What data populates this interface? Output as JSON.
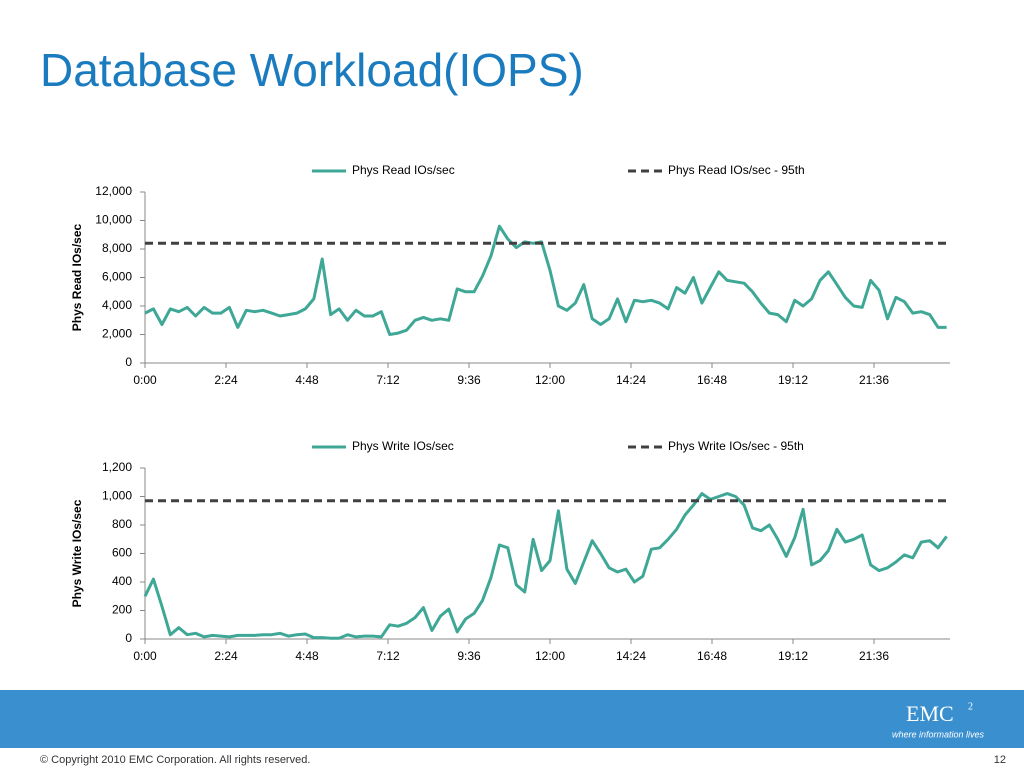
{
  "slide": {
    "title": "Database Workload(IOPS)",
    "copyright": "© Copyright 2010  EMC Corporation.  All rights reserved.",
    "page": "12",
    "logo": "EMC",
    "logo_sup": "2",
    "tagline": "where information lives"
  },
  "chart_data": [
    {
      "type": "line",
      "ylabel": "Phys Read IOs/sec",
      "x": [
        0,
        15,
        30,
        45,
        60,
        75,
        90,
        105,
        120,
        135,
        150,
        165,
        180,
        195,
        210,
        225,
        240,
        255,
        270,
        285,
        300,
        315,
        330,
        345,
        360,
        375,
        390,
        405,
        420,
        435,
        450,
        465,
        480,
        495,
        510,
        525,
        540,
        555,
        570,
        585,
        600,
        615,
        630,
        645,
        660,
        675,
        690,
        705,
        720,
        735,
        750,
        765,
        780,
        795,
        810,
        825,
        840,
        855,
        870,
        885,
        900,
        915,
        930,
        945,
        960,
        975,
        990,
        1005,
        1020,
        1035,
        1050,
        1065,
        1080,
        1095,
        1110,
        1125,
        1140,
        1155,
        1170,
        1185,
        1200,
        1215,
        1230,
        1245,
        1260,
        1275,
        1290,
        1305,
        1320,
        1335,
        1350,
        1365,
        1380,
        1395,
        1410,
        1425
      ],
      "series": [
        {
          "name": "Phys Read IOs/sec",
          "color": "#3fa796",
          "values": [
            3500,
            3800,
            2700,
            3800,
            3600,
            3900,
            3300,
            3900,
            3500,
            3500,
            3900,
            2500,
            3700,
            3600,
            3700,
            3500,
            3300,
            3400,
            3500,
            3800,
            4500,
            7300,
            3400,
            3800,
            3000,
            3700,
            3300,
            3300,
            3600,
            2000,
            2100,
            2300,
            3000,
            3200,
            3000,
            3100,
            3000,
            5200,
            5000,
            5000,
            6100,
            7500,
            9600,
            8700,
            8100,
            8500,
            8400,
            8500,
            6500,
            4000,
            3700,
            4200,
            5500,
            3100,
            2700,
            3100,
            4500,
            2900,
            4400,
            4300,
            4400,
            4200,
            3800,
            5300,
            4900,
            6000,
            4200,
            5300,
            6400,
            5800,
            5700,
            5600,
            5000,
            4200,
            3500,
            3400,
            2900,
            4400,
            4000,
            4500,
            5800,
            6400,
            5500,
            4600,
            4000,
            3900,
            5800,
            5100,
            3100,
            4600,
            4300,
            3500,
            3600,
            3400,
            2500,
            2500
          ]
        }
      ],
      "reference_lines": [
        {
          "name": "Phys Read IOs/sec - 95th",
          "value": 8400,
          "color": "#404040",
          "dash": true
        }
      ],
      "xlim": [
        0,
        1440
      ],
      "xticks": [
        {
          "value": 0,
          "label": "0:00"
        },
        {
          "value": 144,
          "label": "2:24"
        },
        {
          "value": 288,
          "label": "4:48"
        },
        {
          "value": 432,
          "label": "7:12"
        },
        {
          "value": 576,
          "label": "9:36"
        },
        {
          "value": 720,
          "label": "12:00"
        },
        {
          "value": 864,
          "label": "14:24"
        },
        {
          "value": 1008,
          "label": "16:48"
        },
        {
          "value": 1152,
          "label": "19:12"
        },
        {
          "value": 1296,
          "label": "21:36"
        }
      ],
      "ylim": [
        0,
        12000
      ],
      "yticks": [
        0,
        {
          "value": 2000,
          "label": "2,000"
        },
        {
          "value": 4000,
          "label": "4,000"
        },
        {
          "value": 6000,
          "label": "6,000"
        },
        {
          "value": 8000,
          "label": "8,000"
        },
        {
          "value": 10000,
          "label": "10,000"
        },
        {
          "value": 12000,
          "label": "12,000"
        }
      ],
      "grid": false
    },
    {
      "type": "line",
      "ylabel": "Phys Write IOs/sec",
      "x": [
        0,
        15,
        30,
        45,
        60,
        75,
        90,
        105,
        120,
        135,
        150,
        165,
        180,
        195,
        210,
        225,
        240,
        255,
        270,
        285,
        300,
        315,
        330,
        345,
        360,
        375,
        390,
        405,
        420,
        435,
        450,
        465,
        480,
        495,
        510,
        525,
        540,
        555,
        570,
        585,
        600,
        615,
        630,
        645,
        660,
        675,
        690,
        705,
        720,
        735,
        750,
        765,
        780,
        795,
        810,
        825,
        840,
        855,
        870,
        885,
        900,
        915,
        930,
        945,
        960,
        975,
        990,
        1005,
        1020,
        1035,
        1050,
        1065,
        1080,
        1095,
        1110,
        1125,
        1140,
        1155,
        1170,
        1185,
        1200,
        1215,
        1230,
        1245,
        1260,
        1275,
        1290,
        1305,
        1320,
        1335,
        1350,
        1365,
        1380,
        1395,
        1410,
        1425
      ],
      "series": [
        {
          "name": "Phys Write IOs/sec",
          "color": "#3fa796",
          "values": [
            300,
            420,
            230,
            30,
            80,
            30,
            40,
            15,
            25,
            20,
            15,
            25,
            25,
            25,
            30,
            30,
            40,
            20,
            30,
            35,
            10,
            10,
            5,
            5,
            30,
            15,
            20,
            20,
            15,
            100,
            90,
            110,
            150,
            220,
            60,
            160,
            210,
            50,
            140,
            180,
            270,
            430,
            660,
            640,
            380,
            330,
            700,
            480,
            550,
            900,
            490,
            390,
            540,
            690,
            600,
            500,
            470,
            490,
            400,
            440,
            630,
            640,
            700,
            770,
            870,
            940,
            1020,
            980,
            1000,
            1020,
            1000,
            940,
            780,
            760,
            800,
            700,
            580,
            710,
            910,
            520,
            550,
            620,
            770,
            680,
            700,
            730,
            520,
            480,
            500,
            540,
            590,
            570,
            680,
            690,
            640,
            720
          ]
        }
      ],
      "reference_lines": [
        {
          "name": "Phys Write IOs/sec - 95th",
          "value": 970,
          "color": "#404040",
          "dash": true
        }
      ],
      "xlim": [
        0,
        1440
      ],
      "xticks": [
        {
          "value": 0,
          "label": "0:00"
        },
        {
          "value": 144,
          "label": "2:24"
        },
        {
          "value": 288,
          "label": "4:48"
        },
        {
          "value": 432,
          "label": "7:12"
        },
        {
          "value": 576,
          "label": "9:36"
        },
        {
          "value": 720,
          "label": "12:00"
        },
        {
          "value": 864,
          "label": "14:24"
        },
        {
          "value": 1008,
          "label": "16:48"
        },
        {
          "value": 1152,
          "label": "19:12"
        },
        {
          "value": 1296,
          "label": "21:36"
        }
      ],
      "ylim": [
        0,
        1200
      ],
      "yticks": [
        0,
        200,
        400,
        600,
        800,
        {
          "value": 1000,
          "label": "1,000"
        },
        {
          "value": 1200,
          "label": "1,200"
        }
      ],
      "grid": false
    }
  ]
}
